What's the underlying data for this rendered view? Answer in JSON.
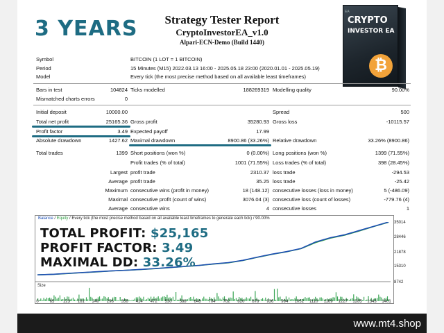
{
  "banner": "3 YEARS",
  "report": {
    "title": "Strategy Tester Report",
    "ea": "CryptoInvestorEA_v1.0",
    "server": "Alpari-ECN-Demo (Build 1440)"
  },
  "product_box": {
    "line1": "CRYPTO",
    "line2": "INVESTOR EA",
    "coin": "₿"
  },
  "settings": [
    {
      "label": "Symbol",
      "value": "BITCOIN (1 LOT = 1 BITCOIN)"
    },
    {
      "label": "Period",
      "value": "15 Minutes (M15) 2022.03.13 16:00 - 2025.05.18 23:00 (2020.01.01 - 2025.05.19)"
    },
    {
      "label": "Model",
      "value": "Every tick (the most precise method based on all available least timeframes)"
    }
  ],
  "bars": {
    "bars_label": "Bars in test",
    "bars_value": "104824",
    "ticks_label": "Ticks modelled",
    "ticks_value": "188269319",
    "quality_label": "Modelling quality",
    "quality_value": "90.00%",
    "mismatch_label": "Mismatched charts errors",
    "mismatch_value": "0"
  },
  "stats": {
    "initial_deposit_label": "Initial deposit",
    "initial_deposit": "10000.00",
    "spread_label": "Spread",
    "spread": "500",
    "net_profit_label": "Total net profit",
    "net_profit": "25165.36",
    "gross_profit_label": "Gross profit",
    "gross_profit": "35280.93",
    "gross_loss_label": "Gross loss",
    "gross_loss": "-10115.57",
    "profit_factor_label": "Profit factor",
    "profit_factor": "3.49",
    "expected_payoff_label": "Expected payoff",
    "expected_payoff": "17.99",
    "abs_dd_label": "Absolute drawdown",
    "abs_dd": "1427.62",
    "max_dd_label": "Maximal drawdown",
    "max_dd": "8900.86 (33.26%)",
    "rel_dd_label": "Relative drawdown",
    "rel_dd": "33.26% (8900.86)",
    "total_trades_label": "Total trades",
    "total_trades": "1399",
    "short_label": "Short positions (won %)",
    "short": "0 (0.00%)",
    "long_label": "Long positions (won %)",
    "long": "1399 (71.55%)",
    "profit_trades_label": "Profit trades (% of total)",
    "profit_trades": "1001 (71.55%)",
    "loss_trades_label": "Loss trades (% of total)",
    "loss_trades": "398 (28.45%)",
    "largest_label": "Largest",
    "largest_profit_label": "profit trade",
    "largest_profit": "2310.37",
    "largest_loss_label": "loss trade",
    "largest_loss": "-294.53",
    "average_label": "Average",
    "avg_profit_label": "profit trade",
    "avg_profit": "35.25",
    "avg_loss_label": "loss trade",
    "avg_loss": "-25.42",
    "maximum_label": "Maximum",
    "max_wins_label": "consecutive wins (profit in money)",
    "max_wins": "18 (148.12)",
    "max_losses_label": "consecutive losses (loss in money)",
    "max_losses": "5 (-486.09)",
    "maximal_label": "Maximal",
    "maximal_profit_label": "consecutive profit (count of wins)",
    "maximal_profit": "3076.04 (3)",
    "maximal_loss_label": "consecutive loss (count of losses)",
    "maximal_loss": "-779.76 (4)",
    "average2_label": "Average",
    "avg_cons_wins_label": "consecutive wins",
    "avg_cons_wins": "4",
    "avg_cons_losses_label": "consecutive losses",
    "avg_cons_losses": "1"
  },
  "chart": {
    "legend_balance": "Balance",
    "legend_sep": " / ",
    "legend_equity": "Equity",
    "legend_rest": " / Every tick (the most precise method based on all available least timeframes to generate each tick) / 90.00%",
    "size_label": "Size",
    "overlay": [
      {
        "label": "TOTAL PROFIT: ",
        "value": "$25,165"
      },
      {
        "label": "PROFIT FACTOR: ",
        "value": "3.49"
      },
      {
        "label": "MAXIMAL DD: ",
        "value": "33.26%"
      }
    ],
    "y_ticks": [
      "35014",
      "28446",
      "21878",
      "15310",
      "8742"
    ],
    "x_ticks": [
      "0",
      "65",
      "123",
      "181",
      "240",
      "298",
      "356",
      "414",
      "472",
      "530",
      "588",
      "646",
      "704",
      "762",
      "820",
      "878",
      "936",
      "994",
      "1052",
      "1110",
      "1169",
      "1227",
      "1285",
      "1343",
      "1401"
    ]
  },
  "chart_data": {
    "type": "line",
    "title": "",
    "xlabel": "",
    "ylabel": "",
    "ylim": [
      8742,
      35014
    ],
    "xlim": [
      0,
      1401
    ],
    "series": [
      {
        "name": "Balance",
        "color": "#1e4fb4",
        "x": [
          0,
          65,
          123,
          181,
          240,
          298,
          356,
          414,
          472,
          530,
          588,
          646,
          704,
          762,
          820,
          878,
          936,
          994,
          1052,
          1110,
          1169,
          1227,
          1285,
          1343,
          1401
        ],
        "values": [
          10000,
          10300,
          10700,
          11100,
          11500,
          11900,
          12200,
          12600,
          13000,
          13500,
          14000,
          14500,
          15200,
          15800,
          16900,
          18400,
          19800,
          21000,
          22500,
          25600,
          27600,
          29000,
          31000,
          33000,
          35014
        ]
      },
      {
        "name": "Equity",
        "color": "#2f9e44",
        "x": [
          0,
          65,
          123,
          181,
          240,
          298,
          356,
          414,
          472,
          530,
          588,
          646,
          704,
          762,
          820,
          878,
          936,
          994,
          1052,
          1110,
          1169,
          1227,
          1285,
          1343,
          1401
        ],
        "values": [
          10000,
          10250,
          10650,
          11050,
          11450,
          11850,
          12150,
          12550,
          12950,
          13450,
          13950,
          14450,
          15100,
          15700,
          16800,
          18300,
          19700,
          20900,
          22400,
          25300,
          27400,
          28800,
          30800,
          32900,
          34900
        ]
      }
    ],
    "grid": false,
    "colors": {
      "accent": "#1e6c83",
      "balance": "#1e4fb4",
      "equity": "#2f9e44",
      "volume": "#3aa655"
    }
  },
  "footer": {
    "site": "www.mt4.shop"
  }
}
